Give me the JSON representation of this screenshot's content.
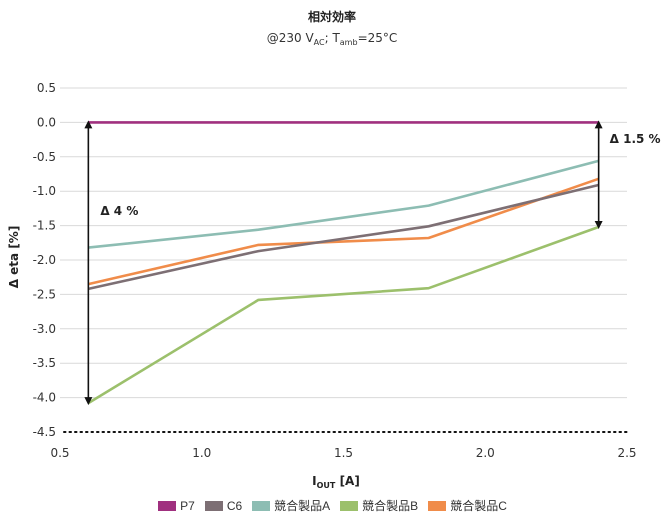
{
  "chart_data": {
    "type": "line",
    "title": "相対効率",
    "subtitle_parts": {
      "prefix": "@230 V",
      "v_sub": "AC",
      "mid": "; T",
      "t_sub": "amb",
      "suffix": "=25°C"
    },
    "xlabel_parts": {
      "main": "I",
      "sub": "OUT",
      "suffix": " [A]"
    },
    "ylabel": "Δ eta [%]",
    "xlim": [
      0.5,
      2.5
    ],
    "ylim": [
      -4.5,
      0.5
    ],
    "x_ticks": [
      "0.5",
      "1.0",
      "1.5",
      "2.0",
      "2.5"
    ],
    "y_ticks": [
      "0.5",
      "0.0",
      "-0.5",
      "-1.0",
      "-1.5",
      "-2.0",
      "-2.5",
      "-3.0",
      "-3.5",
      "-4.0",
      "-4.5"
    ],
    "grid": true,
    "legend_position": "bottom",
    "series": [
      {
        "name": "P7",
        "color": "#a0307f",
        "x": [
          0.6,
          1.2,
          1.8,
          2.4
        ],
        "values": [
          0,
          0,
          0,
          0
        ]
      },
      {
        "name": "C6",
        "color": "#7d6f74",
        "x": [
          0.6,
          1.2,
          1.8,
          2.4
        ],
        "values": [
          -2.42,
          -1.87,
          -1.51,
          -0.91
        ]
      },
      {
        "name": "競合製品A",
        "color": "#8dbdb3",
        "x": [
          0.6,
          1.2,
          1.8,
          2.4
        ],
        "values": [
          -1.82,
          -1.56,
          -1.21,
          -0.56
        ]
      },
      {
        "name": "競合製品B",
        "color": "#9cc06c",
        "x": [
          0.6,
          1.2,
          1.8,
          2.4
        ],
        "values": [
          -4.08,
          -2.58,
          -2.41,
          -1.52
        ]
      },
      {
        "name": "競合製品C",
        "color": "#f08c4a",
        "x": [
          0.6,
          1.2,
          1.8,
          2.4
        ],
        "values": [
          -2.35,
          -1.78,
          -1.68,
          -0.82
        ]
      }
    ],
    "annotations": [
      {
        "text": "Δ 4 %",
        "x": 0.6,
        "from": 0,
        "to": -4.08
      },
      {
        "text": "Δ 1.5 %",
        "x": 2.4,
        "from": 0,
        "to": -1.52
      }
    ]
  }
}
